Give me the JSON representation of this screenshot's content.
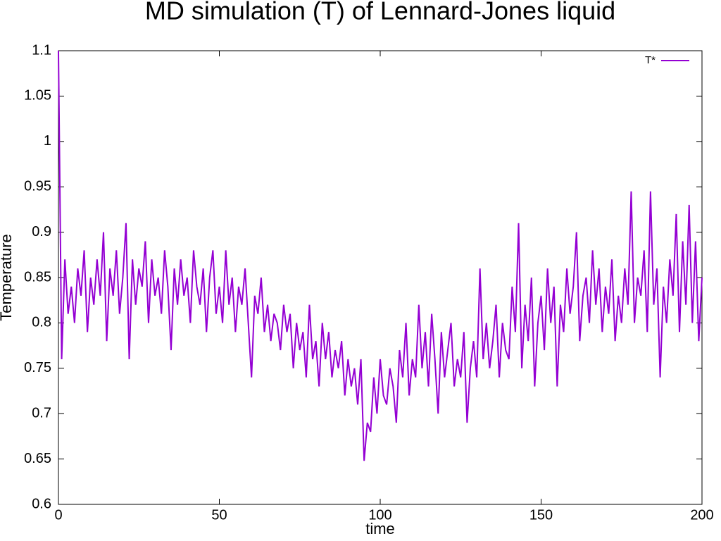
{
  "chart_data": {
    "type": "line",
    "title": "MD simulation (T) of Lennard-Jones liquid",
    "x_label": "time",
    "y_label": "Temperature",
    "x": [
      0,
      1,
      2,
      3,
      4,
      5,
      6,
      7,
      8,
      9,
      10,
      11,
      12,
      13,
      14,
      15,
      16,
      17,
      18,
      19,
      20,
      21,
      22,
      23,
      24,
      25,
      26,
      27,
      28,
      29,
      30,
      31,
      32,
      33,
      34,
      35,
      36,
      37,
      38,
      39,
      40,
      41,
      42,
      43,
      44,
      45,
      46,
      47,
      48,
      49,
      50,
      51,
      52,
      53,
      54,
      55,
      56,
      57,
      58,
      59,
      60,
      61,
      62,
      63,
      64,
      65,
      66,
      67,
      68,
      69,
      70,
      71,
      72,
      73,
      74,
      75,
      76,
      77,
      78,
      79,
      80,
      81,
      82,
      83,
      84,
      85,
      86,
      87,
      88,
      89,
      90,
      91,
      92,
      93,
      94,
      95,
      96,
      97,
      98,
      99,
      100,
      101,
      102,
      103,
      104,
      105,
      106,
      107,
      108,
      109,
      110,
      111,
      112,
      113,
      114,
      115,
      116,
      117,
      118,
      119,
      120,
      121,
      122,
      123,
      124,
      125,
      126,
      127,
      128,
      129,
      130,
      131,
      132,
      133,
      134,
      135,
      136,
      137,
      138,
      139,
      140,
      141,
      142,
      143,
      144,
      145,
      146,
      147,
      148,
      149,
      150,
      151,
      152,
      153,
      154,
      155,
      156,
      157,
      158,
      159,
      160,
      161,
      162,
      163,
      164,
      165,
      166,
      167,
      168,
      169,
      170,
      171,
      172,
      173,
      174,
      175,
      176,
      177,
      178,
      179,
      180,
      181,
      182,
      183,
      184,
      185,
      186,
      187,
      188,
      189,
      190,
      191,
      192,
      193,
      194,
      195,
      196,
      197,
      198,
      199,
      200
    ],
    "series": [
      {
        "name": "T*",
        "color": "#9400d3",
        "values": [
          1.1,
          0.76,
          0.87,
          0.81,
          0.84,
          0.8,
          0.86,
          0.83,
          0.88,
          0.79,
          0.85,
          0.82,
          0.87,
          0.83,
          0.9,
          0.78,
          0.86,
          0.83,
          0.88,
          0.81,
          0.85,
          0.91,
          0.76,
          0.87,
          0.82,
          0.86,
          0.84,
          0.89,
          0.8,
          0.87,
          0.83,
          0.85,
          0.81,
          0.88,
          0.84,
          0.77,
          0.86,
          0.82,
          0.87,
          0.83,
          0.85,
          0.8,
          0.88,
          0.84,
          0.82,
          0.86,
          0.79,
          0.85,
          0.88,
          0.81,
          0.84,
          0.8,
          0.88,
          0.82,
          0.85,
          0.79,
          0.84,
          0.82,
          0.86,
          0.8,
          0.74,
          0.83,
          0.81,
          0.85,
          0.79,
          0.82,
          0.78,
          0.81,
          0.8,
          0.77,
          0.82,
          0.79,
          0.81,
          0.75,
          0.8,
          0.77,
          0.79,
          0.74,
          0.82,
          0.76,
          0.78,
          0.73,
          0.8,
          0.76,
          0.79,
          0.74,
          0.77,
          0.75,
          0.78,
          0.72,
          0.76,
          0.73,
          0.75,
          0.71,
          0.76,
          0.648,
          0.69,
          0.68,
          0.74,
          0.7,
          0.76,
          0.72,
          0.71,
          0.75,
          0.73,
          0.69,
          0.77,
          0.74,
          0.8,
          0.72,
          0.76,
          0.74,
          0.82,
          0.75,
          0.79,
          0.73,
          0.81,
          0.76,
          0.7,
          0.79,
          0.74,
          0.77,
          0.8,
          0.73,
          0.76,
          0.74,
          0.79,
          0.69,
          0.75,
          0.78,
          0.74,
          0.86,
          0.76,
          0.8,
          0.75,
          0.78,
          0.82,
          0.74,
          0.8,
          0.77,
          0.76,
          0.84,
          0.79,
          0.91,
          0.75,
          0.82,
          0.78,
          0.85,
          0.73,
          0.8,
          0.83,
          0.77,
          0.86,
          0.8,
          0.84,
          0.73,
          0.82,
          0.79,
          0.86,
          0.81,
          0.84,
          0.9,
          0.78,
          0.83,
          0.85,
          0.8,
          0.88,
          0.82,
          0.86,
          0.79,
          0.84,
          0.81,
          0.87,
          0.78,
          0.83,
          0.8,
          0.86,
          0.82,
          0.945,
          0.8,
          0.85,
          0.83,
          0.88,
          0.79,
          0.945,
          0.82,
          0.86,
          0.74,
          0.84,
          0.8,
          0.87,
          0.83,
          0.92,
          0.79,
          0.89,
          0.82,
          0.93,
          0.8,
          0.89,
          0.78,
          0.85
        ]
      }
    ],
    "xlim": [
      0,
      200
    ],
    "xticks": [
      0,
      50,
      100,
      150,
      200
    ],
    "ylim": [
      0.6,
      1.1
    ],
    "yticks": [
      0.6,
      0.65,
      0.7,
      0.75,
      0.8,
      0.85,
      0.9,
      0.95,
      1,
      1.05,
      1.1
    ],
    "grid": false,
    "legend": "top-right"
  }
}
